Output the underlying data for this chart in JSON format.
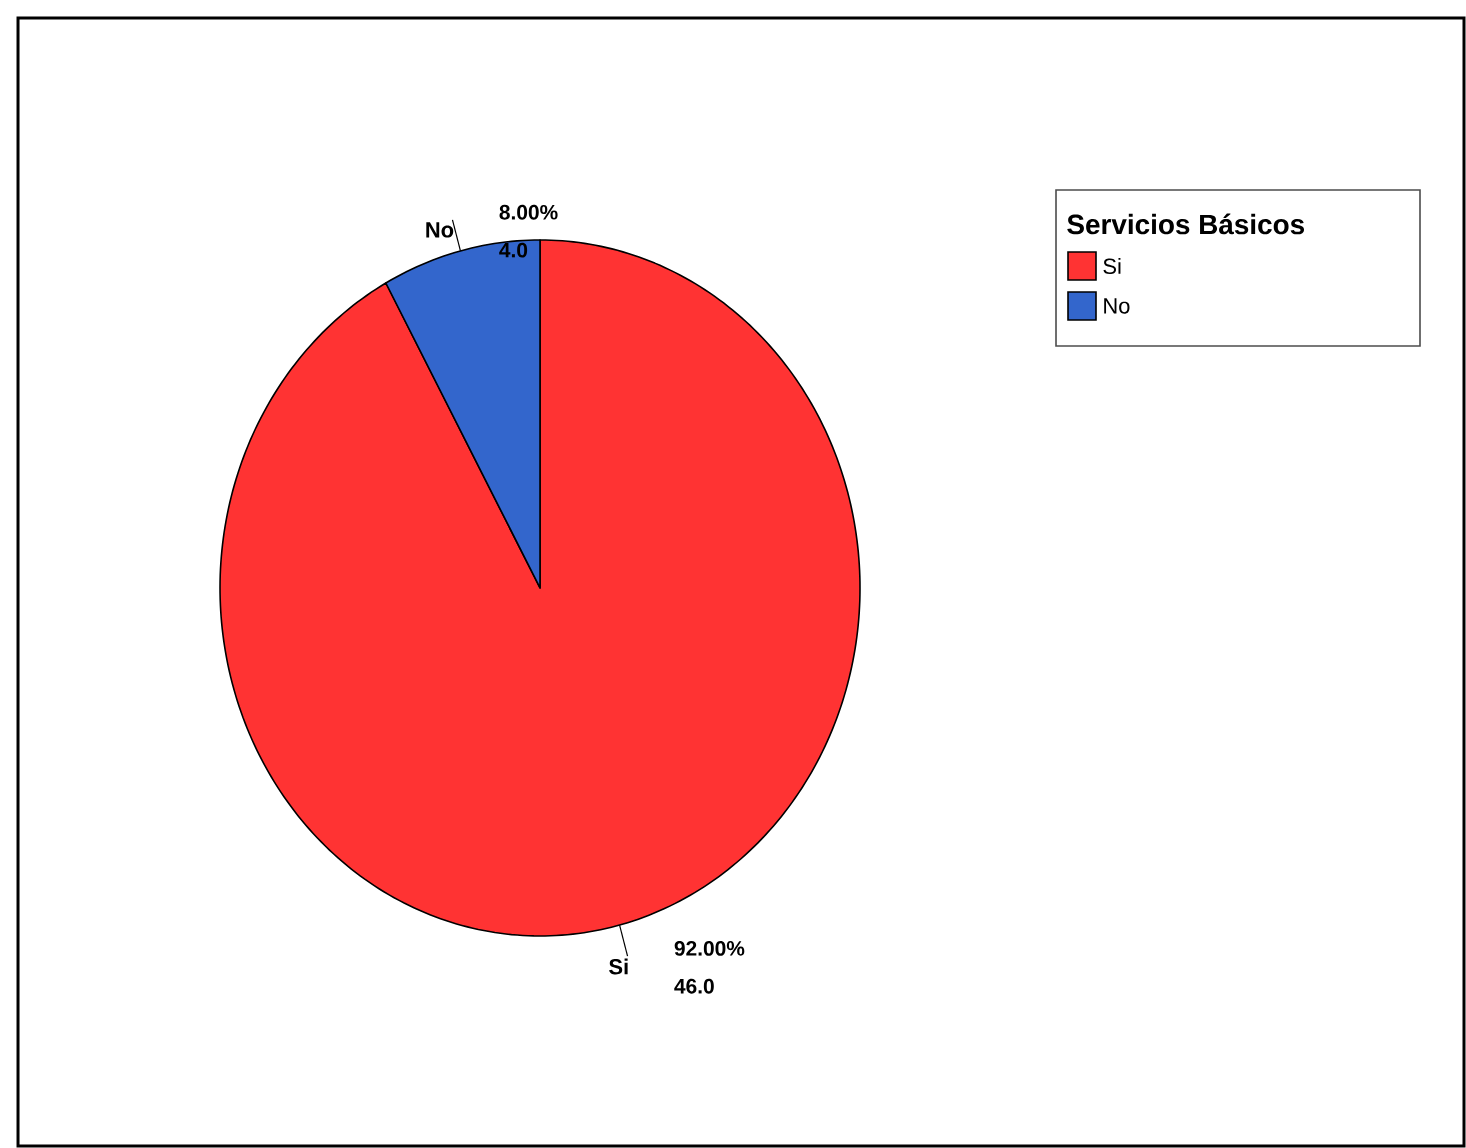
{
  "chart_data": {
    "type": "pie",
    "legend_title": "Servicios Básicos",
    "legend": "top right",
    "categories": [
      "Si",
      "No"
    ],
    "values": [
      46.0,
      4.0
    ],
    "colors": [
      "#ff3333",
      "#3366cc"
    ],
    "value_labels": [
      "46.0",
      "4.0"
    ],
    "annotations": [
      "92.00%",
      "8.00%"
    ]
  }
}
